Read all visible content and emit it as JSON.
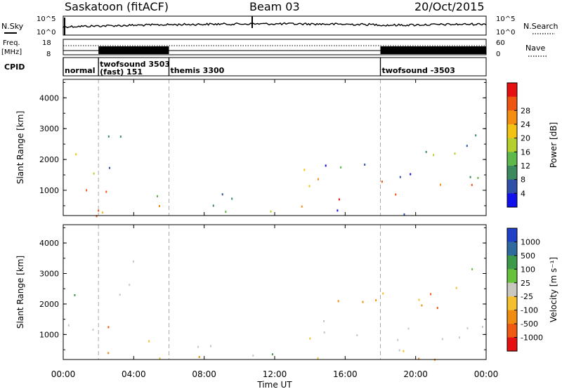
{
  "header": {
    "station": "Saskatoon (fitACF)",
    "beam": "Beam 03",
    "date": "20/Oct/2015"
  },
  "sky_panel": {
    "label": "N.Sky",
    "label_right": "N.Search",
    "tick_top_left": "10^5",
    "tick_bottom_left": "10^0",
    "tick_top_right": "10^5",
    "tick_bottom_right": "10^0"
  },
  "freq_panel": {
    "label_line1": "Freq.",
    "label_line2": "[MHz]",
    "label_right": "Nave",
    "tick_top_left": "18",
    "tick_bottom_left": "8",
    "tick_top_right": "60",
    "tick_bottom_right": "0"
  },
  "cpid": {
    "label": "CPID",
    "segments": [
      {
        "start_hour": 0.0,
        "end_hour": 2.0,
        "line1": "normal",
        "line2": ""
      },
      {
        "start_hour": 2.0,
        "end_hour": 6.0,
        "line1": "twofsound 3503",
        "line2": "(fast) 151"
      },
      {
        "start_hour": 6.0,
        "end_hour": 18.0,
        "line1": "themis 3300",
        "line2": ""
      },
      {
        "start_hour": 18.0,
        "end_hour": 24.0,
        "line1": "twofsound -3503",
        "line2": ""
      }
    ]
  },
  "x_axis": {
    "label": "Time UT",
    "ticks": [
      "00:00",
      "04:00",
      "08:00",
      "12:00",
      "16:00",
      "20:00",
      "00:00"
    ]
  },
  "chart_data": [
    {
      "type": "heatmap",
      "name": "power",
      "ylabel": "Slant Range [km]",
      "xlim": [
        0,
        24
      ],
      "ylim": [
        180,
        4600
      ],
      "yticks": [
        "1000",
        "2000",
        "3000",
        "4000"
      ],
      "colorbar": {
        "label": "Power [dB]",
        "ticks": [
          "4",
          "8",
          "12",
          "16",
          "20",
          "24",
          "28"
        ],
        "colors": [
          "#1010ee",
          "#2f50a8",
          "#3d8a5e",
          "#5fb84b",
          "#b5cf2c",
          "#f2c312",
          "#f58e10",
          "#ee5510",
          "#e61010"
        ]
      },
      "blobs": [
        {
          "t0": 0.0,
          "t1": 1.9,
          "r0": 700,
          "r1": 1400,
          "c": [
            4,
            8
          ]
        },
        {
          "t0": 0.0,
          "t1": 1.3,
          "r0": 1700,
          "r1": 2700,
          "c": [
            2,
            6
          ]
        },
        {
          "t0": 1.9,
          "t1": 2.6,
          "r0": 700,
          "r1": 1700,
          "c": [
            6,
            8
          ]
        },
        {
          "t0": 1.6,
          "t1": 3.6,
          "r0": 1400,
          "r1": 2500,
          "c": [
            1,
            4
          ]
        },
        {
          "t0": 2.4,
          "t1": 3.8,
          "r0": 1700,
          "r1": 2800,
          "c": [
            0,
            3
          ]
        },
        {
          "t0": 3.5,
          "t1": 6.0,
          "r0": 550,
          "r1": 900,
          "c": [
            0,
            3
          ]
        },
        {
          "t0": 6.6,
          "t1": 10.3,
          "r0": 600,
          "r1": 1050,
          "c": [
            1,
            3
          ]
        },
        {
          "t0": 12.6,
          "t1": 13.2,
          "r0": 900,
          "r1": 1200,
          "c": [
            4,
            7
          ]
        },
        {
          "t0": 13.3,
          "t1": 14.0,
          "r0": 700,
          "r1": 1800,
          "c": [
            4,
            7
          ]
        },
        {
          "t0": 13.8,
          "t1": 17.9,
          "r0": 700,
          "r1": 1400,
          "c": [
            5,
            8
          ]
        },
        {
          "t0": 14.0,
          "t1": 17.9,
          "r0": 1400,
          "r1": 2000,
          "c": [
            0,
            3
          ]
        },
        {
          "t0": 17.9,
          "t1": 24.0,
          "r0": 850,
          "r1": 1400,
          "c": [
            6,
            8
          ]
        },
        {
          "t0": 18.0,
          "t1": 24.0,
          "r0": 1400,
          "r1": 2000,
          "c": [
            0,
            4
          ]
        },
        {
          "t0": 20.5,
          "t1": 24.0,
          "r0": 1900,
          "r1": 3300,
          "c": [
            1,
            5
          ]
        },
        {
          "t0": 0.0,
          "t1": 24.0,
          "r0": 180,
          "r1": 550,
          "c": [
            0,
            8
          ]
        }
      ]
    },
    {
      "type": "heatmap",
      "name": "velocity",
      "ylabel": "Slant Range [km]",
      "xlim": [
        0,
        24
      ],
      "ylim": [
        180,
        4600
      ],
      "yticks": [
        "1000",
        "2000",
        "3000",
        "4000"
      ],
      "colorbar": {
        "label": "Velocity [m s^-1]",
        "ticks": [
          "1000",
          "500",
          "100",
          "25",
          "-25",
          "-100",
          "-500",
          "-1000"
        ],
        "colors": [
          "#2040c8",
          "#2f6a9e",
          "#3d9a4a",
          "#66c23a",
          "#c8c8c0",
          "#f5c030",
          "#f08c10",
          "#ee5a10",
          "#e61010"
        ]
      },
      "blobs": [
        {
          "t0": 0.0,
          "t1": 1.9,
          "r0": 900,
          "r1": 1700,
          "c": [
            4,
            4
          ]
        },
        {
          "t0": 0.0,
          "t1": 1.3,
          "r0": 2000,
          "r1": 2400,
          "c": [
            2,
            3
          ]
        },
        {
          "t0": 1.8,
          "t1": 3.6,
          "r0": 700,
          "r1": 1400,
          "c": [
            5,
            7
          ]
        },
        {
          "t0": 2.4,
          "t1": 4.0,
          "r0": 1600,
          "r1": 3500,
          "c": [
            4,
            4
          ]
        },
        {
          "t0": 3.4,
          "t1": 5.8,
          "r0": 600,
          "r1": 900,
          "c": [
            5,
            6
          ]
        },
        {
          "t0": 6.6,
          "t1": 10.3,
          "r0": 600,
          "r1": 1000,
          "c": [
            4,
            4
          ]
        },
        {
          "t0": 13.3,
          "t1": 14.1,
          "r0": 700,
          "r1": 1900,
          "c": [
            5,
            7
          ]
        },
        {
          "t0": 14.0,
          "t1": 17.5,
          "r0": 800,
          "r1": 1500,
          "c": [
            4,
            4
          ]
        },
        {
          "t0": 14.0,
          "t1": 18.0,
          "r0": 1700,
          "r1": 2300,
          "c": [
            5,
            7
          ]
        },
        {
          "t0": 18.0,
          "t1": 24.0,
          "r0": 850,
          "r1": 1700,
          "c": [
            4,
            4
          ]
        },
        {
          "t0": 18.0,
          "t1": 24.0,
          "r0": 1900,
          "r1": 2700,
          "c": [
            5,
            7
          ]
        },
        {
          "t0": 22.0,
          "t1": 24.0,
          "r0": 2200,
          "r1": 3300,
          "c": [
            2,
            5
          ]
        },
        {
          "t0": 0.0,
          "t1": 24.0,
          "r0": 180,
          "r1": 550,
          "c": [
            2,
            7
          ]
        }
      ]
    }
  ]
}
